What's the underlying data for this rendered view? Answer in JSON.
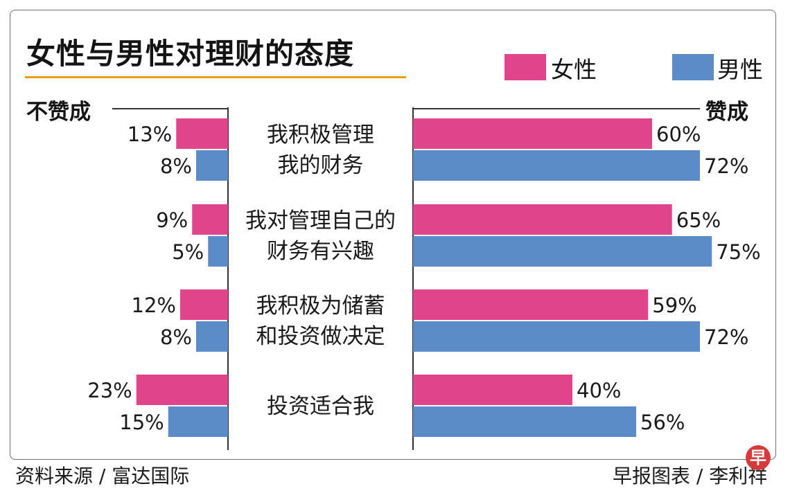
{
  "title": "女性与男性对理财的态度",
  "legend": [
    {
      "label": "女性",
      "color": "#e0448b"
    },
    {
      "label": "男性",
      "color": "#5b8cc8"
    }
  ],
  "side_labels": {
    "left": "不赞成",
    "right": "赞成"
  },
  "source": "资料来源 / 富达国际",
  "credit": "早报图表 / 李利祥",
  "logo_char": "早",
  "chart_data": {
    "type": "bar",
    "orientation": "horizontal-diverging",
    "categories": [
      [
        "我积极管理",
        "我的财务"
      ],
      [
        "我对管理自己的",
        "财务有兴趣"
      ],
      [
        "我积极为储蓄",
        "和投资做决定"
      ],
      [
        "投资适合我"
      ]
    ],
    "series": [
      {
        "name": "女性",
        "color": "#e0448b",
        "disagree": [
          13,
          9,
          12,
          23
        ],
        "agree": [
          60,
          65,
          59,
          40
        ]
      },
      {
        "name": "男性",
        "color": "#5b8cc8",
        "disagree": [
          8,
          5,
          8,
          15
        ],
        "agree": [
          72,
          75,
          72,
          56
        ]
      }
    ],
    "unit": "%",
    "label_left": "不赞成",
    "label_right": "赞成"
  }
}
